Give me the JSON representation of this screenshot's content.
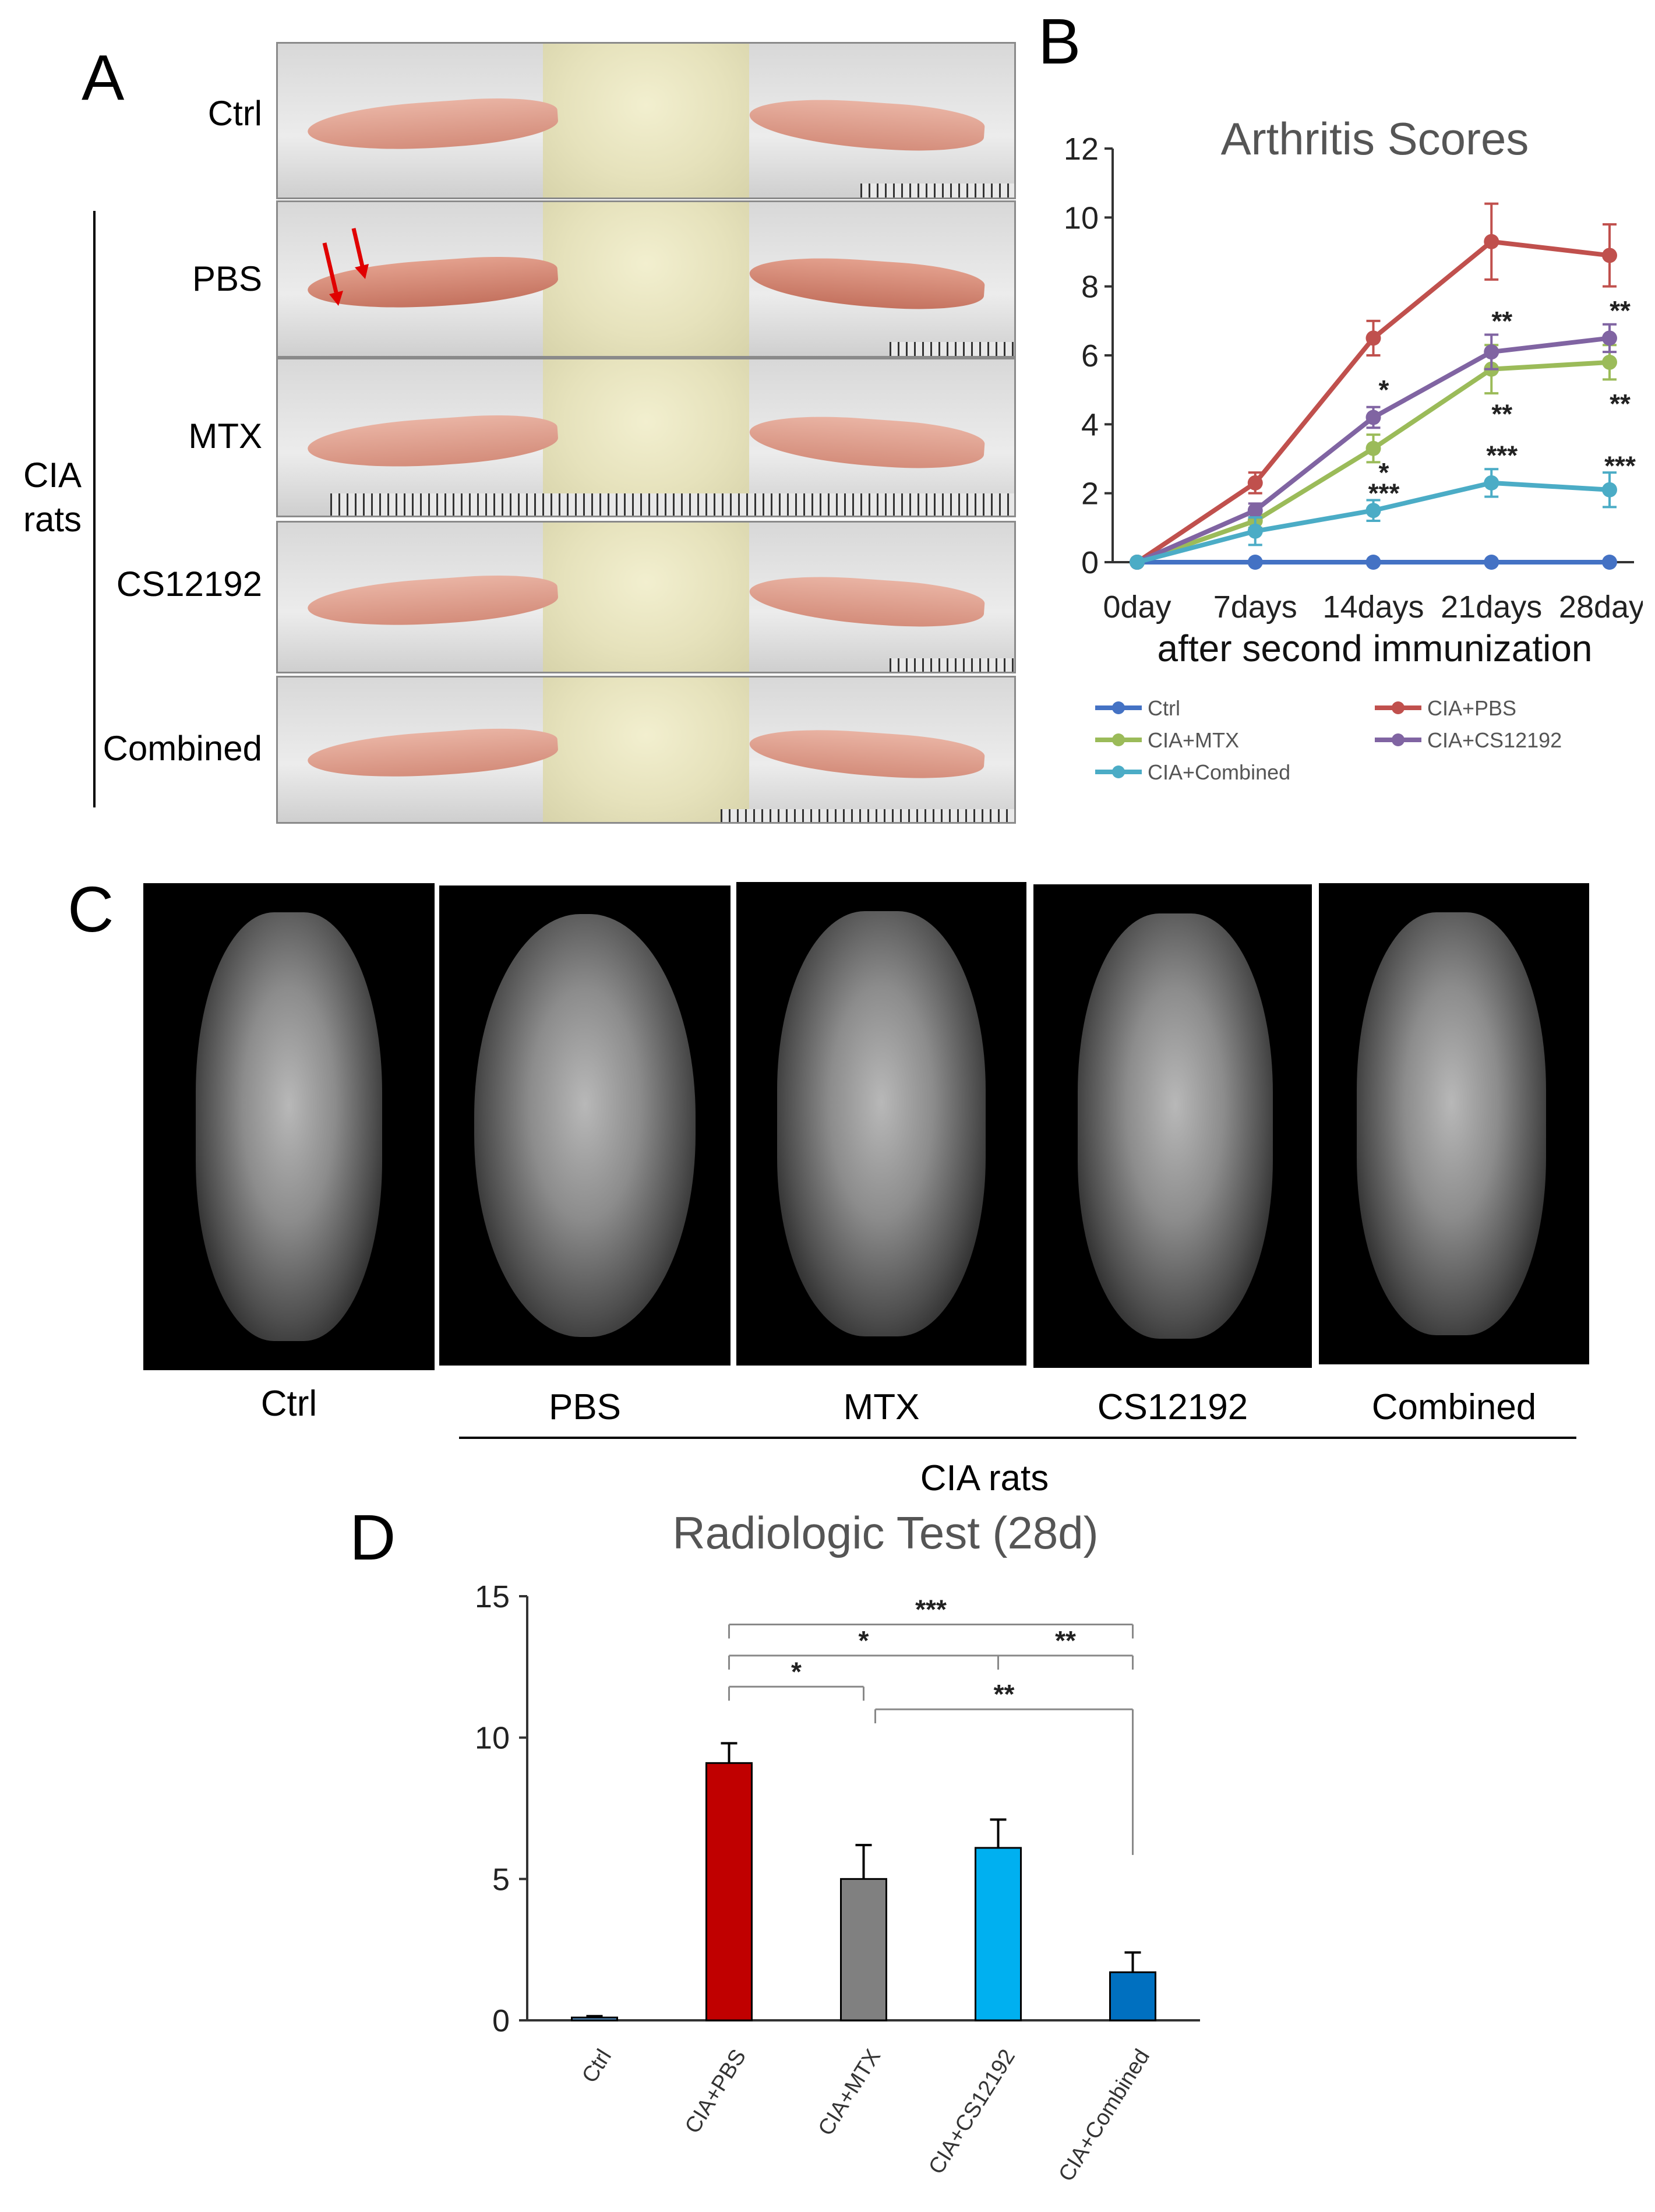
{
  "panels": {
    "a": {
      "letter": "A",
      "rows": [
        "Ctrl",
        "PBS",
        "MTX",
        "CS12192",
        "Combined"
      ],
      "group_label_1": "CIA",
      "group_label_2": "rats"
    },
    "b": {
      "letter": "B"
    },
    "c": {
      "letter": "C",
      "labels": [
        "Ctrl",
        "PBS",
        "MTX",
        "CS12192",
        "Combined"
      ],
      "group_label": "CIA rats"
    },
    "d": {
      "letter": "D"
    }
  },
  "colors": {
    "ctrl": "#4472C4",
    "pbs": "#C0504D",
    "mtx": "#9BBB59",
    "cs12192": "#8064A2",
    "combined": "#4BACC6",
    "bar_ctrl": "#5b9bd5",
    "bar_pbs": "#C00000",
    "bar_mtx": "#808080",
    "bar_cs": "#00B0F0",
    "bar_combined": "#0070C0"
  },
  "chart_data": [
    {
      "type": "line",
      "title": "Arthritis Scores",
      "xlabel": "after second immunization",
      "ylabel": "",
      "categories": [
        "0day",
        "7days",
        "14days",
        "21days",
        "28days"
      ],
      "yticks": [
        "0",
        "2",
        "4",
        "6",
        "8",
        "10",
        "12"
      ],
      "ylim": [
        0,
        12
      ],
      "series": [
        {
          "name": "Ctrl",
          "values": [
            0,
            0,
            0,
            0,
            0
          ],
          "errors": [
            0,
            0,
            0,
            0,
            0
          ],
          "color": "#4472C4"
        },
        {
          "name": "CIA+PBS",
          "values": [
            0,
            2.3,
            6.5,
            9.3,
            8.9
          ],
          "errors": [
            0,
            0.3,
            0.5,
            1.1,
            0.9
          ],
          "color": "#C0504D"
        },
        {
          "name": "CIA+MTX",
          "values": [
            0,
            1.2,
            3.3,
            5.6,
            5.8
          ],
          "errors": [
            0,
            0.2,
            0.4,
            0.7,
            0.5
          ],
          "color": "#9BBB59"
        },
        {
          "name": "CIA+CS12192",
          "values": [
            0,
            1.5,
            4.2,
            6.1,
            6.5
          ],
          "errors": [
            0,
            0.2,
            0.3,
            0.5,
            0.4
          ],
          "color": "#8064A2"
        },
        {
          "name": "CIA+Combined",
          "values": [
            0,
            0.9,
            1.5,
            2.3,
            2.1
          ],
          "errors": [
            0,
            0.4,
            0.3,
            0.4,
            0.5
          ],
          "color": "#4BACC6"
        }
      ],
      "annotations": [
        {
          "text": "*",
          "x": "14days",
          "y": 5.0
        },
        {
          "text": "*",
          "x": "14days",
          "y": 2.6
        },
        {
          "text": "***",
          "x": "14days",
          "y": 2.0
        },
        {
          "text": "**",
          "x": "21days",
          "y": 7.0
        },
        {
          "text": "**",
          "x": "21days",
          "y": 4.3
        },
        {
          "text": "***",
          "x": "21days",
          "y": 3.1
        },
        {
          "text": "**",
          "x": "28days",
          "y": 7.3
        },
        {
          "text": "**",
          "x": "28days",
          "y": 4.6
        },
        {
          "text": "***",
          "x": "28days",
          "y": 2.8
        }
      ],
      "legend": [
        "Ctrl",
        "CIA+PBS",
        "CIA+MTX",
        "CIA+CS12192",
        "CIA+Combined"
      ]
    },
    {
      "type": "bar",
      "title": "Radiologic Test (28d)",
      "xlabel": "",
      "ylabel": "",
      "categories": [
        "Ctrl",
        "CIA+PBS",
        "CIA+MTX",
        "CIA+CS12192",
        "CIA+Combined"
      ],
      "values": [
        0.1,
        9.1,
        5.0,
        6.1,
        1.7
      ],
      "errors": [
        0.05,
        0.7,
        1.2,
        1.0,
        0.7
      ],
      "yticks": [
        "0",
        "5",
        "10",
        "15"
      ],
      "ylim": [
        0,
        15
      ],
      "brackets": [
        {
          "from": "CIA+PBS",
          "to": "CIA+Combined",
          "text": "***",
          "level": 14.0
        },
        {
          "from": "CIA+PBS",
          "to": "CIA+CS12192",
          "text": "*",
          "level": 12.9
        },
        {
          "from": "CIA+CS12192",
          "to": "CIA+Combined",
          "text": "**",
          "level": 12.9
        },
        {
          "from": "CIA+PBS",
          "to": "CIA+MTX",
          "text": "*",
          "level": 11.8
        },
        {
          "from": "CIA+MTX",
          "to": "CIA+Combined",
          "text": "**",
          "level": 11.0
        }
      ]
    }
  ]
}
